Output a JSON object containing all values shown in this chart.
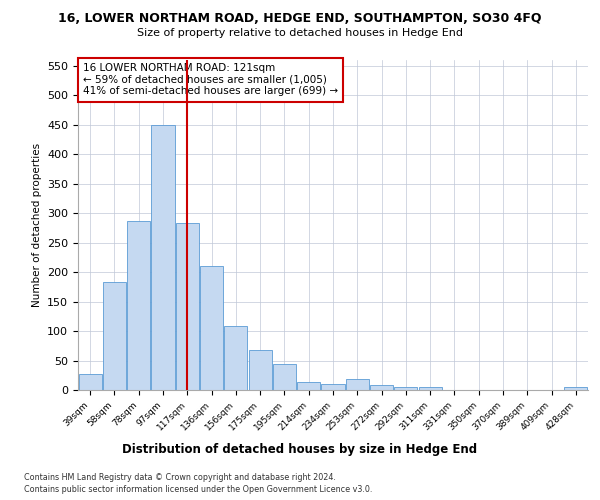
{
  "title1": "16, LOWER NORTHAM ROAD, HEDGE END, SOUTHAMPTON, SO30 4FQ",
  "title2": "Size of property relative to detached houses in Hedge End",
  "xlabel": "Distribution of detached houses by size in Hedge End",
  "ylabel": "Number of detached properties",
  "categories": [
    "39sqm",
    "58sqm",
    "78sqm",
    "97sqm",
    "117sqm",
    "136sqm",
    "156sqm",
    "175sqm",
    "195sqm",
    "214sqm",
    "234sqm",
    "253sqm",
    "272sqm",
    "292sqm",
    "311sqm",
    "331sqm",
    "350sqm",
    "370sqm",
    "389sqm",
    "409sqm",
    "428sqm"
  ],
  "values": [
    28,
    183,
    287,
    450,
    283,
    210,
    108,
    68,
    44,
    13,
    10,
    18,
    8,
    5,
    5,
    0,
    0,
    0,
    0,
    0,
    5
  ],
  "bar_color": "#c5d9f1",
  "bar_edge_color": "#5b9bd5",
  "vline_x": 4,
  "vline_color": "#cc0000",
  "annotation_text": "16 LOWER NORTHAM ROAD: 121sqm\n← 59% of detached houses are smaller (1,005)\n41% of semi-detached houses are larger (699) →",
  "annotation_box_color": "#ffffff",
  "annotation_box_edge": "#cc0000",
  "ylim": [
    0,
    560
  ],
  "yticks": [
    0,
    50,
    100,
    150,
    200,
    250,
    300,
    350,
    400,
    450,
    500,
    550
  ],
  "footer1": "Contains HM Land Registry data © Crown copyright and database right 2024.",
  "footer2": "Contains public sector information licensed under the Open Government Licence v3.0.",
  "background_color": "#ffffff",
  "grid_color": "#c0c8d8"
}
